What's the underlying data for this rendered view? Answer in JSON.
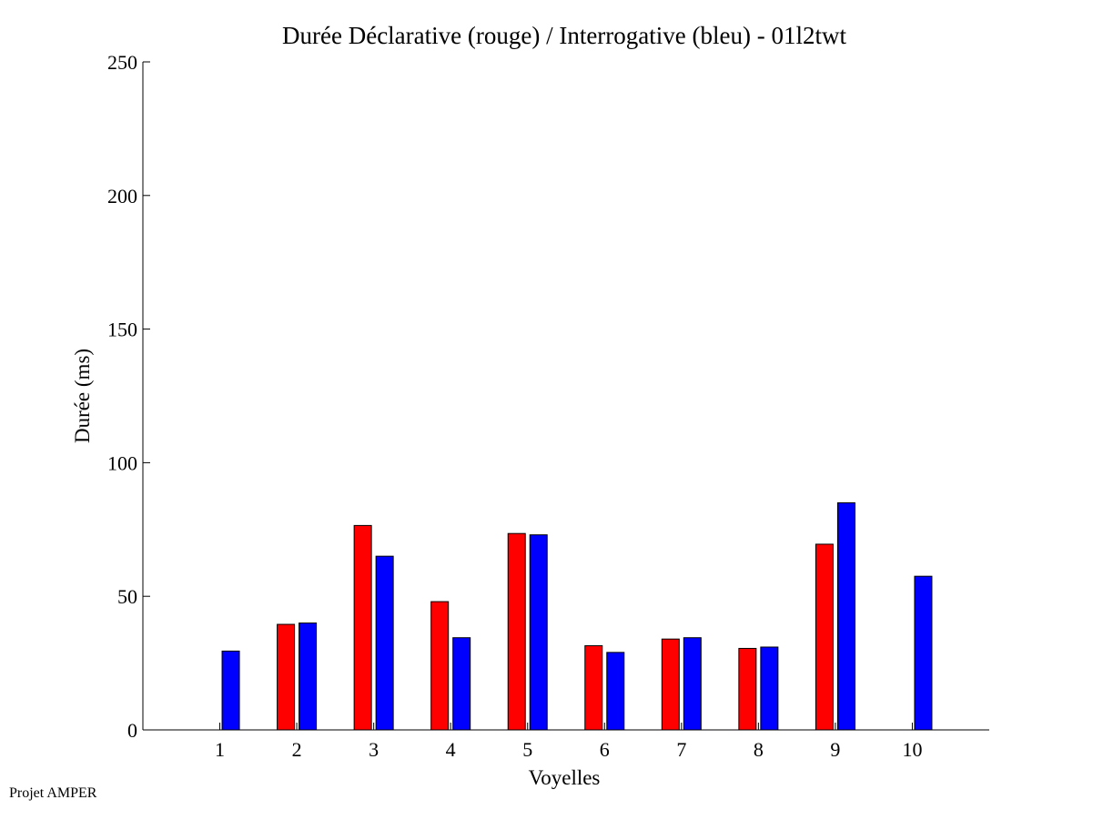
{
  "chart_data": {
    "type": "bar",
    "title": "Durée Déclarative (rouge) / Interrogative (bleu) - 01l2twt",
    "xlabel": "Voyelles",
    "ylabel": "Durée (ms)",
    "ylim": [
      0,
      250
    ],
    "yticks": [
      0,
      50,
      100,
      150,
      200,
      250
    ],
    "categories": [
      "1",
      "2",
      "3",
      "4",
      "5",
      "6",
      "7",
      "8",
      "9",
      "10"
    ],
    "grid": false,
    "series": [
      {
        "color": "#ff0000",
        "values": [
          0,
          39.5,
          76.5,
          48,
          73.5,
          31.5,
          34,
          30.5,
          69.5,
          0
        ]
      },
      {
        "color": "#0000ff",
        "values": [
          29.5,
          40,
          65,
          34.5,
          73,
          29,
          34.5,
          31,
          85,
          57.5
        ]
      }
    ]
  },
  "footer": {
    "text": "Projet AMPER"
  }
}
